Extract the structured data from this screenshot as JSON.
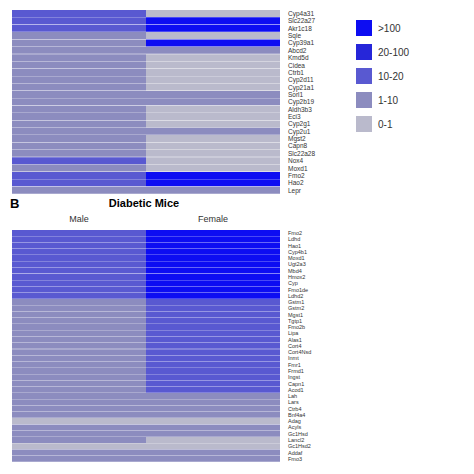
{
  "chart_data": [
    {
      "type": "heatmap",
      "categories": [
        "Cyp4a31",
        "Slc22a27",
        "Akr1c18",
        "Sqle",
        "Cyp39a1",
        "Abcd2",
        "Kmd5d",
        "Cidea",
        "Ctrb1",
        "Cyp2d11",
        "Cyp21a1",
        "Sorl1",
        "Cyp2b19",
        "Aldh3b3",
        "Eci3",
        "Cyp2g1",
        "Cyp2u1",
        "Mgst2",
        "Capn8",
        "Slc22a28",
        "Nox4",
        "Moxd1",
        "Fmo2",
        "Hao2",
        "Lepr"
      ],
      "values": [
        [
          3,
          1
        ],
        [
          3,
          5
        ],
        [
          3,
          5
        ],
        [
          2,
          1
        ],
        [
          2,
          5
        ],
        [
          2,
          2
        ],
        [
          2,
          1
        ],
        [
          2,
          1
        ],
        [
          2,
          1
        ],
        [
          2,
          1
        ],
        [
          2,
          1
        ],
        [
          2,
          2
        ],
        [
          2,
          2
        ],
        [
          2,
          1
        ],
        [
          2,
          1
        ],
        [
          2,
          1
        ],
        [
          2,
          2
        ],
        [
          2,
          1
        ],
        [
          2,
          1
        ],
        [
          2,
          1
        ],
        [
          3,
          1
        ],
        [
          2,
          1
        ],
        [
          3,
          5
        ],
        [
          3,
          5
        ],
        [
          2,
          2
        ]
      ],
      "tick_labels": "y"
    },
    {
      "type": "heatmap",
      "title": "Diabetic Mice",
      "panel_label": "B",
      "columns": [
        "Male",
        "Female"
      ],
      "categories": [
        "Fmo2",
        "Ldhd",
        "Hao1",
        "Cyp4b1",
        "Moxd1",
        "Ugt2a3",
        "Mbd4",
        "Hmox2",
        "Cyp",
        "Fmo1de",
        "Ldhd2",
        "Gstm1",
        "Gstm2",
        "Mgst1",
        "Tgtp1",
        "Fmo2b",
        "Lipa",
        "Alas1",
        "Cort4",
        "Cort4Nsd",
        "Inmt",
        "Fmr1",
        "Frmd1",
        "Ingst",
        "Capn1",
        "Acod1",
        "Lah",
        "Lars",
        "Ctrb4",
        "Bnf4a4",
        "Adag",
        "Acyls",
        "Gc1Hsd",
        "Lancl2",
        "Gc1Hsd2",
        "Addaf",
        "Fmo3"
      ],
      "values": [
        [
          3,
          5
        ],
        [
          3,
          5
        ],
        [
          3,
          5
        ],
        [
          3,
          5
        ],
        [
          3,
          5
        ],
        [
          3,
          5
        ],
        [
          3,
          5
        ],
        [
          3,
          5
        ],
        [
          3,
          5
        ],
        [
          3,
          5
        ],
        [
          3,
          5
        ],
        [
          2,
          3
        ],
        [
          2,
          3
        ],
        [
          2,
          3
        ],
        [
          2,
          3
        ],
        [
          2,
          3
        ],
        [
          2,
          3
        ],
        [
          2,
          3
        ],
        [
          2,
          3
        ],
        [
          2,
          3
        ],
        [
          2,
          3
        ],
        [
          2,
          3
        ],
        [
          2,
          3
        ],
        [
          2,
          3
        ],
        [
          2,
          3
        ],
        [
          2,
          3
        ],
        [
          2,
          2
        ],
        [
          2,
          2
        ],
        [
          2,
          2
        ],
        [
          2,
          2
        ],
        [
          1,
          1
        ],
        [
          2,
          2
        ],
        [
          2,
          2
        ],
        [
          2,
          1
        ],
        [
          1,
          1
        ],
        [
          2,
          2
        ],
        [
          2,
          2
        ]
      ],
      "tick_labels": "x",
      "scale": {
        "levels": [
          5,
          4,
          3,
          2,
          1
        ],
        "labels": [
          ">100",
          "20-100",
          "10-20",
          "1-10",
          "0-1"
        ],
        "colors": [
          "#0D0DF2",
          "#2626D9",
          "#5959D1",
          "#8C8CBF",
          "#BABACC"
        ]
      }
    }
  ]
}
